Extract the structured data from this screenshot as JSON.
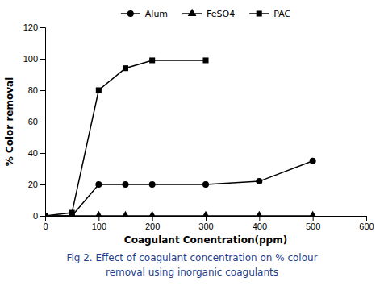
{
  "chart_data": {
    "type": "line",
    "x_label": "Coagulant Conentration(ppm)",
    "y_label": "% Color removal",
    "annotations": [
      "Fig 2. Effect of coagulant concentration on % colour",
      "removal using inorganic coagulants"
    ],
    "series": [
      {
        "name": "Alum",
        "color": "#000000",
        "marker": "circle",
        "x": [
          0,
          50,
          100,
          150,
          200,
          300,
          400,
          500
        ],
        "values": [
          0,
          0,
          20,
          20,
          20,
          20,
          22,
          35
        ]
      },
      {
        "name": "FeSO4",
        "color": "#000000",
        "marker": "triangle",
        "x": [
          0,
          50,
          100,
          150,
          200,
          300,
          400,
          500
        ],
        "values": [
          0,
          0,
          0,
          0,
          0,
          0,
          0,
          0
        ]
      },
      {
        "name": "PAC",
        "color": "#000000",
        "marker": "square",
        "x": [
          0,
          50,
          100,
          150,
          200,
          300
        ],
        "values": [
          0,
          2,
          80,
          94,
          99,
          99
        ]
      }
    ],
    "xlim": [
      0,
      600
    ],
    "ylim": [
      0,
      120
    ],
    "xticks": [
      0,
      100,
      200,
      300,
      400,
      500,
      600
    ],
    "yticks": [
      0,
      20,
      40,
      60,
      80,
      100,
      120
    ],
    "grid": false,
    "legend": "top"
  }
}
